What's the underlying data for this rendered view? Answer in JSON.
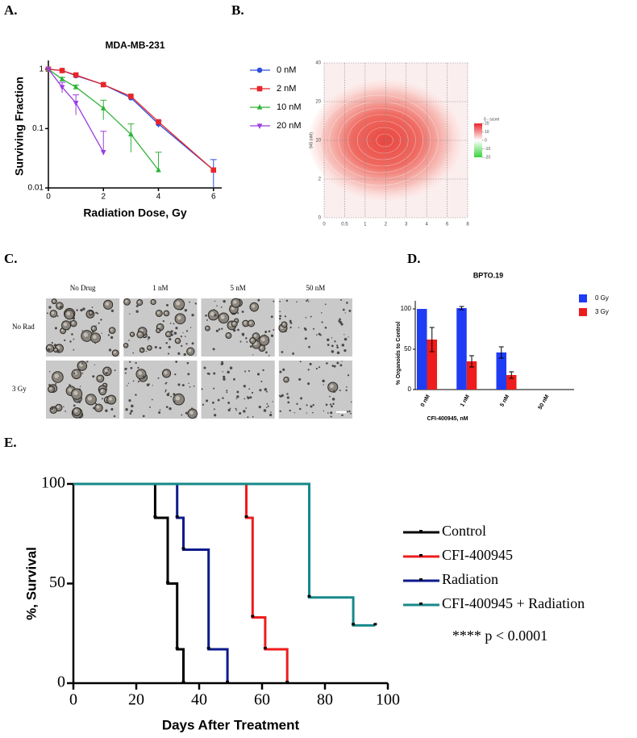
{
  "chart_data": [
    {
      "type": "line",
      "label": "A.",
      "title": "MDA-MB-231",
      "x_label": "Radiation Dose, Gy",
      "y_label": "Surviving Fraction",
      "y_log": true,
      "xlim": [
        0,
        6.3
      ],
      "xticks": [
        0,
        2,
        4,
        6
      ],
      "ylim": [
        0.01,
        1.2
      ],
      "yticks": [
        0.01,
        0.1,
        1
      ],
      "legend": "right",
      "series": [
        {
          "name": "0 nM",
          "color": "#2f4fe0",
          "marker": "circle",
          "x": [
            0,
            0.5,
            1,
            2,
            3,
            4,
            6
          ],
          "values": [
            1,
            0.95,
            0.78,
            0.55,
            0.33,
            0.12,
            0.02
          ],
          "errors": [
            0,
            0,
            0,
            0,
            0,
            0.015,
            0.01
          ]
        },
        {
          "name": "2 nM",
          "color": "#e8262a",
          "marker": "square",
          "x": [
            0,
            0.5,
            1,
            2,
            3,
            4,
            6
          ],
          "values": [
            1,
            0.95,
            0.8,
            0.55,
            0.35,
            0.13,
            0.02
          ],
          "errors": [
            0,
            0,
            0,
            0,
            0,
            0,
            0
          ]
        },
        {
          "name": "10 nM",
          "color": "#2fb43a",
          "marker": "triangle-up",
          "x": [
            0,
            0.5,
            1,
            2,
            3,
            4
          ],
          "values": [
            1,
            0.68,
            0.5,
            0.22,
            0.08,
            0.02
          ],
          "errors": [
            0,
            0.05,
            0.04,
            0.08,
            0.04,
            0.02
          ]
        },
        {
          "name": "20 nM",
          "color": "#9b3ee0",
          "marker": "triangle-down",
          "x": [
            0,
            0.5,
            1,
            2
          ],
          "values": [
            1,
            0.5,
            0.27,
            0.04
          ],
          "errors": [
            0,
            0.1,
            0.1,
            0.05
          ]
        }
      ]
    },
    {
      "type": "heatmap",
      "label": "B.",
      "y_label": "945 (nM)",
      "x_categories": [
        0,
        0.5,
        1,
        2,
        3,
        4,
        6,
        8
      ],
      "y_categories": [
        0,
        2,
        10,
        20,
        40
      ],
      "colorbar_label": "δ - score",
      "colorbar_lim": [
        -20,
        20
      ],
      "colorbar_ticks": [
        20,
        10,
        0,
        -10,
        -20
      ]
    },
    {
      "type": "image_grid",
      "label": "C.",
      "columns": [
        "No Drug",
        "1 nM",
        "5 nM",
        "50 nM"
      ],
      "rows": [
        "No Rad",
        "3 Gy"
      ]
    },
    {
      "type": "bar",
      "label": "D.",
      "title": "BPTO.19",
      "x_label": "CFI-400945, nM",
      "y_label": "% Organoids to Control",
      "categories": [
        "0 nM",
        "1 nM",
        "5 nM",
        "50 nM"
      ],
      "ylim": [
        0,
        110
      ],
      "yticks": [
        0,
        50,
        100
      ],
      "legend": "right",
      "series": [
        {
          "name": "0 Gy",
          "color": "#1f3cf5",
          "values": [
            100,
            101,
            46,
            0
          ],
          "errors": [
            0,
            2,
            7,
            0
          ]
        },
        {
          "name": "3 Gy",
          "color": "#ee1c1c",
          "values": [
            62,
            35,
            18,
            0
          ],
          "errors": [
            15,
            7,
            4,
            0
          ]
        }
      ]
    },
    {
      "type": "line",
      "label": "E.",
      "step": true,
      "x_label": "Days After Treatment",
      "y_label": "%, Survival",
      "xlim": [
        0,
        100
      ],
      "xticks": [
        0,
        20,
        40,
        60,
        80,
        100
      ],
      "ylim": [
        0,
        100
      ],
      "yticks": [
        0,
        50,
        100
      ],
      "legend": "right",
      "annotation": "**** p < 0.0001",
      "series": [
        {
          "name": "Control",
          "color": "#000000",
          "x": [
            0,
            26,
            30,
            33,
            35
          ],
          "values": [
            100,
            83,
            50,
            17,
            0
          ]
        },
        {
          "name": "CFI-400945",
          "color": "#ee1c1c",
          "x": [
            0,
            55,
            57,
            61,
            68
          ],
          "values": [
            100,
            83,
            33,
            17,
            0
          ]
        },
        {
          "name": "Radiation",
          "color": "#0d1a8c",
          "x": [
            0,
            33,
            35,
            43,
            49
          ],
          "values": [
            100,
            83,
            67,
            17,
            0
          ]
        },
        {
          "name": "CFI-400945 + Radiation",
          "color": "#17888a",
          "x": [
            0,
            75,
            89,
            96
          ],
          "values": [
            100,
            43,
            29,
            29
          ]
        }
      ]
    }
  ]
}
